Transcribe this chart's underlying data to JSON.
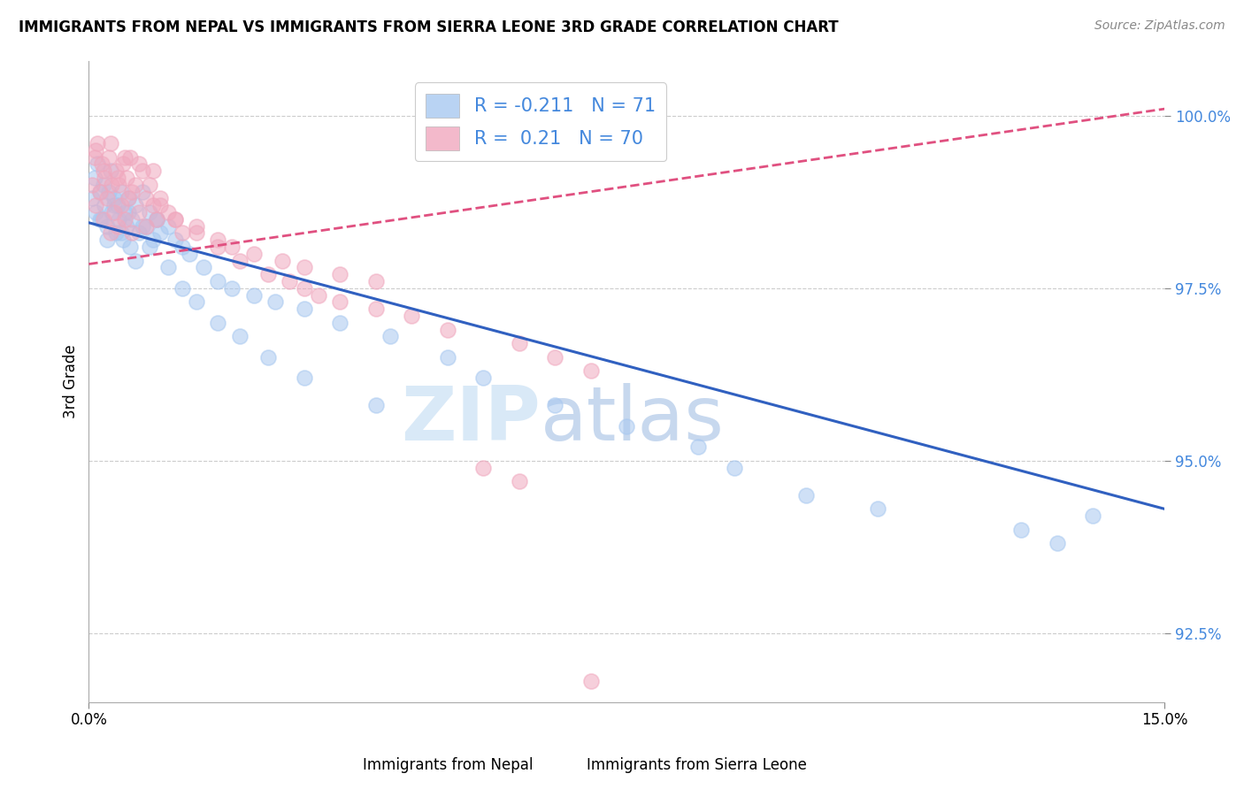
{
  "title": "IMMIGRANTS FROM NEPAL VS IMMIGRANTS FROM SIERRA LEONE 3RD GRADE CORRELATION CHART",
  "source": "Source: ZipAtlas.com",
  "xlabel_nepal": "Immigrants from Nepal",
  "xlabel_sierra": "Immigrants from Sierra Leone",
  "ylabel": "3rd Grade",
  "xlim": [
    0.0,
    15.0
  ],
  "ylim": [
    91.5,
    100.8
  ],
  "yticks": [
    92.5,
    95.0,
    97.5,
    100.0
  ],
  "xticks": [
    0.0,
    15.0
  ],
  "xtick_labels": [
    "0.0%",
    "15.0%"
  ],
  "ytick_labels": [
    "92.5%",
    "95.0%",
    "97.5%",
    "100.0%"
  ],
  "nepal_color": "#a8c8f0",
  "sierra_color": "#f0a8be",
  "nepal_R": -0.211,
  "nepal_N": 71,
  "sierra_R": 0.21,
  "sierra_N": 70,
  "nepal_trend_x": [
    0.0,
    15.0
  ],
  "nepal_trend_y": [
    98.45,
    94.3
  ],
  "sierra_trend_x": [
    0.0,
    15.0
  ],
  "sierra_trend_y": [
    97.85,
    100.1
  ],
  "watermark_zip": "ZIP",
  "watermark_atlas": "atlas",
  "nepal_scatter_x": [
    0.05,
    0.08,
    0.1,
    0.12,
    0.15,
    0.18,
    0.2,
    0.22,
    0.25,
    0.28,
    0.3,
    0.32,
    0.35,
    0.38,
    0.4,
    0.42,
    0.45,
    0.48,
    0.5,
    0.52,
    0.55,
    0.58,
    0.6,
    0.65,
    0.7,
    0.75,
    0.8,
    0.85,
    0.9,
    0.95,
    1.0,
    1.1,
    1.2,
    1.3,
    1.4,
    1.6,
    1.8,
    2.0,
    2.3,
    2.6,
    3.0,
    3.5,
    4.2,
    5.0,
    5.5,
    6.5,
    7.5,
    8.5,
    9.0,
    10.0,
    11.0,
    13.0,
    13.5,
    14.0,
    0.15,
    0.25,
    0.35,
    0.45,
    0.55,
    0.65,
    0.75,
    0.85,
    0.95,
    1.1,
    1.3,
    1.5,
    1.8,
    2.1,
    2.5,
    3.0,
    4.0
  ],
  "nepal_scatter_y": [
    98.8,
    99.1,
    98.6,
    99.3,
    98.9,
    98.5,
    99.0,
    98.7,
    98.4,
    98.9,
    99.2,
    98.6,
    98.8,
    98.3,
    98.7,
    98.5,
    98.9,
    98.2,
    98.6,
    98.4,
    98.8,
    98.1,
    98.5,
    98.7,
    98.3,
    98.9,
    98.4,
    98.6,
    98.2,
    98.5,
    98.3,
    98.4,
    98.2,
    98.1,
    98.0,
    97.8,
    97.6,
    97.5,
    97.4,
    97.3,
    97.2,
    97.0,
    96.8,
    96.5,
    96.2,
    95.8,
    95.5,
    95.2,
    94.9,
    94.5,
    94.3,
    94.0,
    93.8,
    94.2,
    98.5,
    98.2,
    98.7,
    98.3,
    98.6,
    97.9,
    98.4,
    98.1,
    98.5,
    97.8,
    97.5,
    97.3,
    97.0,
    96.8,
    96.5,
    96.2,
    95.8
  ],
  "sierra_scatter_x": [
    0.05,
    0.08,
    0.1,
    0.12,
    0.15,
    0.18,
    0.2,
    0.22,
    0.25,
    0.28,
    0.3,
    0.32,
    0.35,
    0.38,
    0.4,
    0.42,
    0.45,
    0.48,
    0.5,
    0.52,
    0.55,
    0.58,
    0.6,
    0.65,
    0.7,
    0.75,
    0.8,
    0.85,
    0.9,
    0.95,
    1.0,
    1.1,
    1.2,
    1.3,
    1.5,
    1.8,
    2.0,
    2.3,
    2.7,
    3.0,
    3.5,
    4.0,
    0.1,
    0.2,
    0.3,
    0.4,
    0.5,
    0.6,
    0.7,
    0.8,
    0.9,
    1.0,
    1.2,
    1.5,
    1.8,
    2.1,
    2.5,
    3.0,
    3.5,
    4.5,
    5.0,
    6.0,
    6.5,
    7.0,
    2.8,
    3.2,
    4.0,
    5.5,
    6.0,
    7.0
  ],
  "sierra_scatter_y": [
    99.0,
    99.4,
    98.7,
    99.6,
    98.9,
    99.3,
    98.5,
    99.1,
    98.8,
    99.4,
    98.3,
    99.0,
    98.6,
    99.2,
    98.4,
    99.0,
    98.7,
    99.3,
    98.5,
    99.1,
    98.8,
    99.4,
    98.3,
    99.0,
    98.6,
    99.2,
    98.4,
    99.0,
    98.7,
    98.5,
    98.8,
    98.6,
    98.5,
    98.3,
    98.4,
    98.2,
    98.1,
    98.0,
    97.9,
    97.8,
    97.7,
    97.6,
    99.5,
    99.2,
    99.6,
    99.1,
    99.4,
    98.9,
    99.3,
    98.8,
    99.2,
    98.7,
    98.5,
    98.3,
    98.1,
    97.9,
    97.7,
    97.5,
    97.3,
    97.1,
    96.9,
    96.7,
    96.5,
    96.3,
    97.6,
    97.4,
    97.2,
    94.9,
    94.7,
    91.8
  ]
}
